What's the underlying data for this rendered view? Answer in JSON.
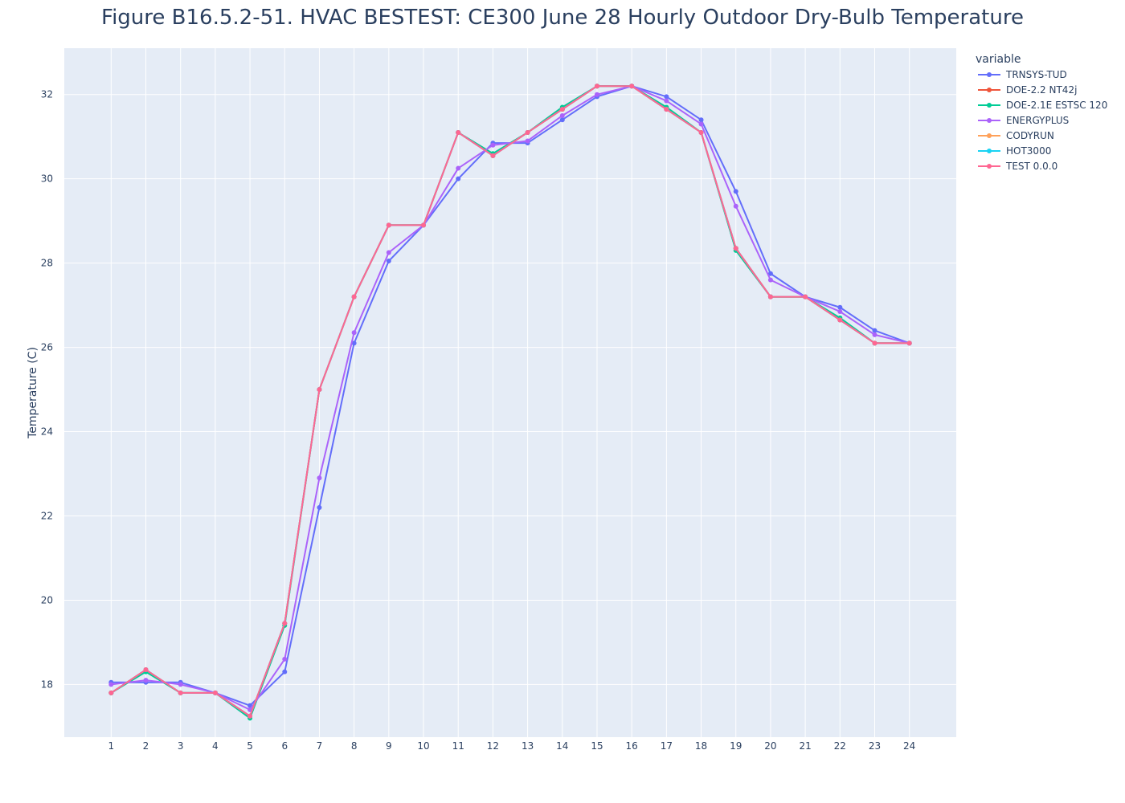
{
  "chart_data": {
    "type": "line",
    "title": "Figure B16.5.2-51. HVAC BESTEST: CE300 June 28 Hourly Outdoor Dry-Bulb Temperature",
    "xlabel": "",
    "ylabel": "Temperature (C)",
    "x": [
      1,
      2,
      3,
      4,
      5,
      6,
      7,
      8,
      9,
      10,
      11,
      12,
      13,
      14,
      15,
      16,
      17,
      18,
      19,
      20,
      21,
      22,
      23,
      24
    ],
    "xlim": [
      -0.35,
      25.35
    ],
    "ylim": [
      16.75,
      33.1
    ],
    "yticks": [
      18,
      20,
      22,
      24,
      26,
      28,
      30,
      32
    ],
    "grid": true,
    "legend_title": "variable",
    "legend_position": "right",
    "series": [
      {
        "name": "TRNSYS-TUD",
        "color": "#636efa",
        "values": [
          18.05,
          18.05,
          18.05,
          17.8,
          17.5,
          18.3,
          22.2,
          26.1,
          28.05,
          28.9,
          30.0,
          30.85,
          30.85,
          31.4,
          31.95,
          32.2,
          31.95,
          31.4,
          29.7,
          27.75,
          27.2,
          26.95,
          26.4,
          26.1
        ]
      },
      {
        "name": "DOE-2.2 NT42j",
        "color": "#ef553b",
        "values": [
          17.8,
          18.35,
          17.8,
          17.8,
          17.25,
          19.45,
          25.0,
          27.2,
          28.9,
          28.9,
          31.1,
          30.55,
          31.1,
          31.65,
          32.2,
          32.2,
          31.65,
          31.1,
          28.35,
          27.2,
          27.2,
          26.65,
          26.1,
          26.1
        ]
      },
      {
        "name": "DOE-2.1E ESTSC 120",
        "color": "#00cc96",
        "values": [
          17.8,
          18.3,
          17.8,
          17.8,
          17.2,
          19.4,
          25.0,
          27.2,
          28.9,
          28.9,
          31.1,
          30.6,
          31.1,
          31.7,
          32.2,
          32.2,
          31.7,
          31.1,
          28.3,
          27.2,
          27.2,
          26.7,
          26.1,
          26.1
        ]
      },
      {
        "name": "ENERGYPLUS",
        "color": "#ab63fa",
        "values": [
          18.0,
          18.1,
          18.0,
          17.8,
          17.4,
          18.6,
          22.9,
          26.35,
          28.25,
          28.9,
          30.25,
          30.8,
          30.9,
          31.5,
          32.0,
          32.2,
          31.85,
          31.3,
          29.35,
          27.6,
          27.2,
          26.85,
          26.3,
          26.1
        ]
      },
      {
        "name": "CODYRUN",
        "color": "#ffa15a",
        "values": [
          17.8,
          18.35,
          17.8,
          17.8,
          17.25,
          19.45,
          25.0,
          27.2,
          28.9,
          28.9,
          31.1,
          30.55,
          31.1,
          31.65,
          32.2,
          32.2,
          31.65,
          31.1,
          28.35,
          27.2,
          27.2,
          26.65,
          26.1,
          26.1
        ]
      },
      {
        "name": "HOT3000",
        "color": "#19d3f3",
        "values": [
          17.8,
          18.35,
          17.8,
          17.8,
          17.25,
          19.45,
          25.0,
          27.2,
          28.9,
          28.9,
          31.1,
          30.55,
          31.1,
          31.65,
          32.2,
          32.2,
          31.65,
          31.1,
          28.35,
          27.2,
          27.2,
          26.65,
          26.1,
          26.1
        ]
      },
      {
        "name": "TEST 0.0.0",
        "color": "#ff6692",
        "values": [
          17.8,
          18.35,
          17.8,
          17.8,
          17.25,
          19.45,
          25.0,
          27.2,
          28.9,
          28.9,
          31.1,
          30.55,
          31.1,
          31.65,
          32.2,
          32.2,
          31.65,
          31.1,
          28.35,
          27.2,
          27.2,
          26.65,
          26.1,
          26.1
        ]
      }
    ]
  },
  "colors": {
    "plot_background": "#e5ecf6",
    "grid": "#ffffff",
    "text": "#2a3f5f"
  }
}
